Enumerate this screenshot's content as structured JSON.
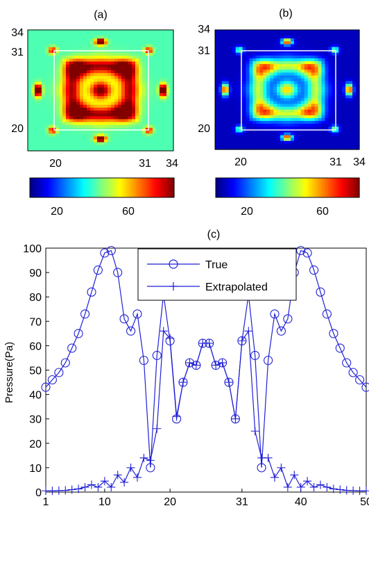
{
  "chart_data": [
    {
      "type": "heatmap",
      "title": "(a)",
      "y_tick_labels": [
        "34",
        "31",
        "20"
      ],
      "x_tick_labels": [
        "20",
        "31",
        "34"
      ],
      "colorbar_ticks": [
        20,
        60
      ],
      "colorbar_tick_labels": [
        "20",
        "60"
      ],
      "colormap": "jet",
      "background_level": 0.45,
      "inner_box": true
    },
    {
      "type": "heatmap",
      "title": "(b)",
      "y_tick_labels": [
        "34",
        "31",
        "20"
      ],
      "x_tick_labels": [
        "20",
        "31",
        "34"
      ],
      "colorbar_ticks": [
        20,
        60
      ],
      "colorbar_tick_labels": [
        "20",
        "60"
      ],
      "colormap": "jet",
      "background_level": 0.06,
      "inner_box": true
    },
    {
      "type": "line",
      "title": "(c)",
      "ylabel": "Pressure(Pa)",
      "xlabel": "",
      "xlim": [
        1,
        50
      ],
      "ylim": [
        0,
        100
      ],
      "x_ticks": [
        1,
        10,
        20,
        31,
        40,
        50
      ],
      "y_ticks": [
        0,
        10,
        20,
        30,
        40,
        50,
        60,
        70,
        80,
        90,
        100
      ],
      "legend_placement": "top-center",
      "color": "#1f1fd6",
      "series": [
        {
          "name": "True",
          "marker": "circle",
          "x": [
            1,
            2,
            3,
            4,
            5,
            6,
            7,
            8,
            9,
            10,
            11,
            12,
            13,
            14,
            15,
            16,
            17,
            18,
            19,
            20,
            21,
            22,
            23,
            24,
            25,
            26,
            27,
            28,
            29,
            30,
            31,
            32,
            33,
            34,
            35,
            36,
            37,
            38,
            39,
            40,
            41,
            42,
            43,
            44,
            45,
            46,
            47,
            48,
            49,
            50
          ],
          "y": [
            43,
            46,
            49,
            53,
            59,
            65,
            73,
            82,
            91,
            98,
            99,
            90,
            71,
            66,
            73,
            54,
            10,
            56,
            81,
            62,
            30,
            45,
            53,
            52,
            61,
            61,
            52,
            53,
            45,
            30,
            62,
            81,
            56,
            10,
            54,
            73,
            66,
            71,
            90,
            99,
            98,
            91,
            82,
            73,
            65,
            59,
            53,
            49,
            46,
            43
          ]
        },
        {
          "name": "Extrapolated",
          "marker": "plus",
          "x": [
            1,
            2,
            3,
            4,
            5,
            6,
            7,
            8,
            9,
            10,
            11,
            12,
            13,
            14,
            15,
            16,
            17,
            18,
            19,
            20,
            21,
            22,
            23,
            24,
            25,
            26,
            27,
            28,
            29,
            30,
            31,
            32,
            33,
            34,
            35,
            36,
            37,
            38,
            39,
            40,
            41,
            42,
            43,
            44,
            45,
            46,
            47,
            48,
            49,
            50
          ],
          "y": [
            0.5,
            0.5,
            0.6,
            0.7,
            1,
            1.3,
            2,
            3,
            2,
            4.5,
            2,
            7,
            4,
            10,
            6,
            14,
            13,
            26,
            66,
            63,
            31,
            45,
            53,
            52,
            61,
            61,
            52,
            53,
            45,
            30,
            62,
            66,
            25,
            14,
            14,
            6,
            10,
            2,
            7,
            2,
            4.5,
            2,
            3,
            2,
            1.3,
            1,
            0.7,
            0.6,
            0.5,
            0.5
          ]
        }
      ]
    }
  ]
}
